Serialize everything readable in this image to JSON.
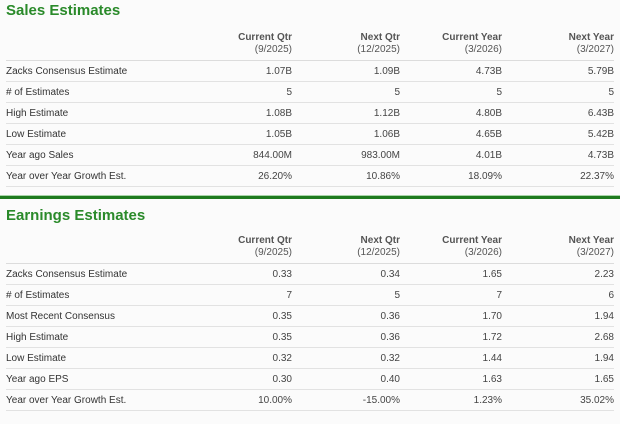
{
  "colors": {
    "title_green": "#2a8a2a",
    "divider_green": "#1e7a1e"
  },
  "columns": [
    {
      "label": "Current Qtr",
      "period": "(9/2025)"
    },
    {
      "label": "Next Qtr",
      "period": "(12/2025)"
    },
    {
      "label": "Current Year",
      "period": "(3/2026)"
    },
    {
      "label": "Next Year",
      "period": "(3/2027)"
    }
  ],
  "sales": {
    "title": "Sales Estimates",
    "rows": [
      {
        "label": "Zacks Consensus Estimate",
        "values": [
          "1.07B",
          "1.09B",
          "4.73B",
          "5.79B"
        ]
      },
      {
        "label": "# of Estimates",
        "values": [
          "5",
          "5",
          "5",
          "5"
        ]
      },
      {
        "label": "High Estimate",
        "values": [
          "1.08B",
          "1.12B",
          "4.80B",
          "6.43B"
        ]
      },
      {
        "label": "Low Estimate",
        "values": [
          "1.05B",
          "1.06B",
          "4.65B",
          "5.42B"
        ]
      },
      {
        "label": "Year ago Sales",
        "values": [
          "844.00M",
          "983.00M",
          "4.01B",
          "4.73B"
        ]
      },
      {
        "label": "Year over Year Growth Est.",
        "values": [
          "26.20%",
          "10.86%",
          "18.09%",
          "22.37%"
        ]
      }
    ]
  },
  "earnings": {
    "title": "Earnings Estimates",
    "rows": [
      {
        "label": "Zacks Consensus Estimate",
        "values": [
          "0.33",
          "0.34",
          "1.65",
          "2.23"
        ]
      },
      {
        "label": "# of Estimates",
        "values": [
          "7",
          "5",
          "7",
          "6"
        ]
      },
      {
        "label": "Most Recent Consensus",
        "values": [
          "0.35",
          "0.36",
          "1.70",
          "1.94"
        ]
      },
      {
        "label": "High Estimate",
        "values": [
          "0.35",
          "0.36",
          "1.72",
          "2.68"
        ]
      },
      {
        "label": "Low Estimate",
        "values": [
          "0.32",
          "0.32",
          "1.44",
          "1.94"
        ]
      },
      {
        "label": "Year ago EPS",
        "values": [
          "0.30",
          "0.40",
          "1.63",
          "1.65"
        ]
      },
      {
        "label": "Year over Year Growth Est.",
        "values": [
          "10.00%",
          "-15.00%",
          "1.23%",
          "35.02%"
        ]
      }
    ]
  }
}
